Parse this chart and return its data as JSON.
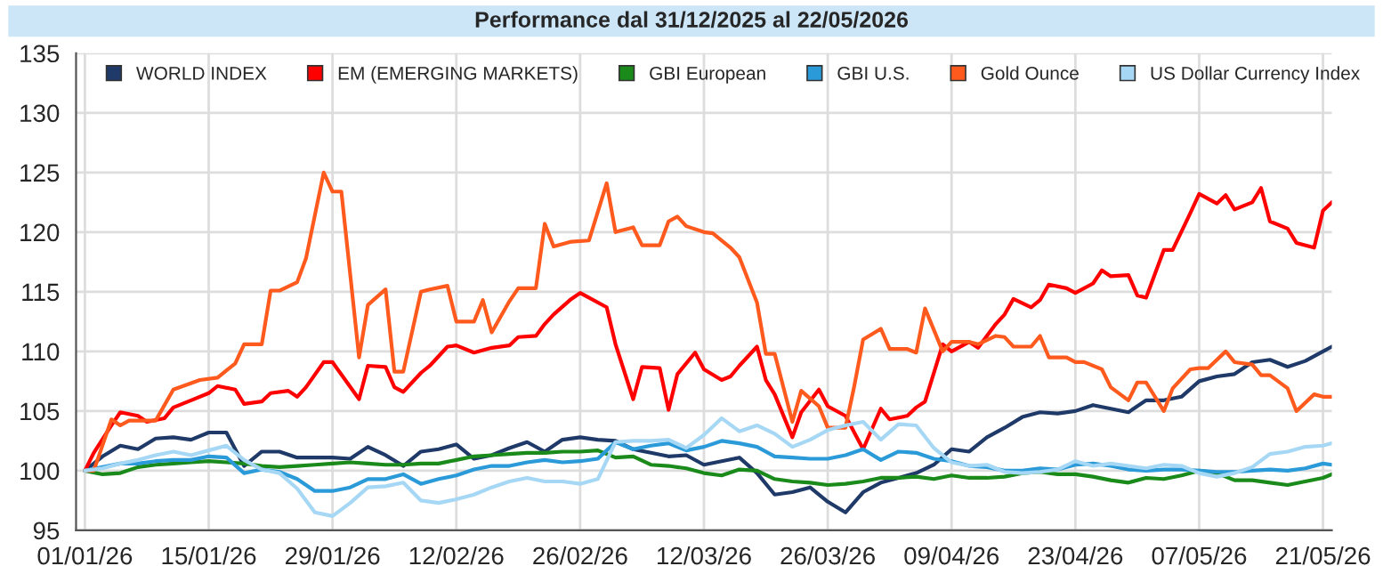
{
  "chart_data": {
    "type": "line",
    "title": "Performance dal 31/12/2025 al 22/05/2026",
    "x": [
      "2026-01-01",
      "2026-01-03",
      "2026-01-05",
      "2026-01-07",
      "2026-01-09",
      "2026-01-11",
      "2026-01-13",
      "2026-01-15",
      "2026-01-17",
      "2026-01-19",
      "2026-01-21",
      "2026-01-23",
      "2026-01-25",
      "2026-01-27",
      "2026-01-29",
      "2026-01-31",
      "2026-02-02",
      "2026-02-04",
      "2026-02-06",
      "2026-02-08",
      "2026-02-10",
      "2026-02-12",
      "2026-02-14",
      "2026-02-16",
      "2026-02-18",
      "2026-02-20",
      "2026-02-22",
      "2026-02-24",
      "2026-02-26",
      "2026-02-28",
      "2026-03-02",
      "2026-03-04",
      "2026-03-06",
      "2026-03-08",
      "2026-03-10",
      "2026-03-12",
      "2026-03-14",
      "2026-03-16",
      "2026-03-18",
      "2026-03-20",
      "2026-03-22",
      "2026-03-24",
      "2026-03-26",
      "2026-03-28",
      "2026-03-30",
      "2026-04-01",
      "2026-04-03",
      "2026-04-05",
      "2026-04-07",
      "2026-04-09",
      "2026-04-11",
      "2026-04-13",
      "2026-04-15",
      "2026-04-17",
      "2026-04-19",
      "2026-04-21",
      "2026-04-23",
      "2026-04-25",
      "2026-04-27",
      "2026-04-29",
      "2026-05-01",
      "2026-05-03",
      "2026-05-05",
      "2026-05-07",
      "2026-05-09",
      "2026-05-11",
      "2026-05-13",
      "2026-05-15",
      "2026-05-17",
      "2026-05-19",
      "2026-05-21",
      "2026-05-22"
    ],
    "series": [
      {
        "name": "WORLD INDEX",
        "color": "#1f3a68",
        "values": [
          100,
          101.2,
          102.1,
          101.8,
          102.7,
          102.8,
          102.6,
          103.2,
          103.2,
          100.4,
          101.6,
          101.6,
          101.1,
          101.1,
          101.1,
          101,
          102,
          101.3,
          100.4,
          101.6,
          101.8,
          102.2,
          101,
          101.3,
          101.9,
          102.4,
          101.6,
          102.6,
          102.8,
          102.6,
          102.5,
          101.8,
          101.5,
          101.2,
          101.3,
          100.5,
          100.8,
          101.1,
          99.8,
          98,
          98.2,
          98.6,
          97.4,
          96.5,
          98.2,
          99,
          99.4,
          99.8,
          100.5,
          101.8,
          101.6,
          102.8,
          103.6,
          104.5,
          104.9,
          104.8,
          105,
          105.5,
          105.2,
          104.9,
          105.9,
          105.9,
          106.2,
          107.5,
          107.9,
          108.1,
          109.1,
          109.3,
          108.7,
          109.2,
          110,
          110.4
        ]
      },
      {
        "name": "EM (EMERGING MARKETS)",
        "color": "#ff0000",
        "x": [
          "2026-01-01",
          "2026-01-02",
          "2026-01-04",
          "2026-01-05",
          "2026-01-07",
          "2026-01-08",
          "2026-01-10",
          "2026-01-11",
          "2026-01-13",
          "2026-01-15",
          "2026-01-16",
          "2026-01-18",
          "2026-01-19",
          "2026-01-21",
          "2026-01-22",
          "2026-01-24",
          "2026-01-25",
          "2026-01-26",
          "2026-01-28",
          "2026-01-29",
          "2026-02-01",
          "2026-02-02",
          "2026-02-04",
          "2026-02-05",
          "2026-02-06",
          "2026-02-08",
          "2026-02-09",
          "2026-02-11",
          "2026-02-12",
          "2026-02-14",
          "2026-02-16",
          "2026-02-18",
          "2026-02-19",
          "2026-02-21",
          "2026-02-22",
          "2026-02-23",
          "2026-02-25",
          "2026-02-26",
          "2026-03-01",
          "2026-03-02",
          "2026-03-04",
          "2026-03-05",
          "2026-03-07",
          "2026-03-08",
          "2026-03-09",
          "2026-03-11",
          "2026-03-12",
          "2026-03-14",
          "2026-03-15",
          "2026-03-16",
          "2026-03-18",
          "2026-03-19",
          "2026-03-20",
          "2026-03-22",
          "2026-03-23",
          "2026-03-25",
          "2026-03-26",
          "2026-03-28",
          "2026-03-30",
          "2026-04-01",
          "2026-04-02",
          "2026-04-04",
          "2026-04-05",
          "2026-04-06",
          "2026-04-08",
          "2026-04-09",
          "2026-04-11",
          "2026-04-12",
          "2026-04-14",
          "2026-04-15",
          "2026-04-16",
          "2026-04-18",
          "2026-04-19",
          "2026-04-20",
          "2026-04-22",
          "2026-04-23",
          "2026-04-25",
          "2026-04-26",
          "2026-04-27",
          "2026-04-29",
          "2026-04-30",
          "2026-05-01",
          "2026-05-03",
          "2026-05-04",
          "2026-05-06",
          "2026-05-07",
          "2026-05-09",
          "2026-05-10",
          "2026-05-11",
          "2026-05-13",
          "2026-05-14",
          "2026-05-15",
          "2026-05-17",
          "2026-05-18",
          "2026-05-20",
          "2026-05-21",
          "2026-05-22"
        ],
        "values": [
          100,
          101.5,
          103.8,
          104.9,
          104.6,
          104.1,
          104.4,
          105.3,
          105.9,
          106.5,
          107.1,
          106.8,
          105.6,
          105.8,
          106.5,
          106.7,
          106.2,
          107,
          109.1,
          109.1,
          106,
          108.8,
          108.7,
          107,
          106.6,
          108.2,
          108.8,
          110.4,
          110.5,
          109.9,
          110.3,
          110.5,
          111.2,
          111.3,
          112.3,
          113.1,
          114.4,
          114.9,
          113.7,
          110.6,
          106,
          108.7,
          108.6,
          105.1,
          108.1,
          109.9,
          108.5,
          107.6,
          107.9,
          108.8,
          110.4,
          107.6,
          106.4,
          102.8,
          104.9,
          106.8,
          105.4,
          104.6,
          101.8,
          105.2,
          104.3,
          104.6,
          105.3,
          105.8,
          110.6,
          110,
          110.8,
          110.3,
          112.3,
          113.1,
          114.4,
          113.7,
          114.3,
          115.6,
          115.3,
          114.9,
          115.7,
          116.8,
          116.3,
          116.4,
          114.7,
          114.5,
          118.5,
          118.5,
          121.6,
          123.2,
          122.4,
          123.1,
          121.9,
          122.5,
          123.7,
          120.9,
          120.3,
          119.1,
          118.7,
          121.8,
          122.5
        ]
      },
      {
        "name": "GBI European",
        "color": "#1a8a1a",
        "values": [
          100,
          99.7,
          99.8,
          100.3,
          100.5,
          100.6,
          100.7,
          100.8,
          100.7,
          100.6,
          100.4,
          100.3,
          100.4,
          100.5,
          100.6,
          100.7,
          100.6,
          100.5,
          100.5,
          100.6,
          100.6,
          100.9,
          101.2,
          101.3,
          101.4,
          101.5,
          101.5,
          101.6,
          101.6,
          101.7,
          101.1,
          101.2,
          100.5,
          100.4,
          100.2,
          99.8,
          99.6,
          100.1,
          100,
          99.3,
          99.1,
          99,
          98.8,
          98.9,
          99.1,
          99.4,
          99.4,
          99.5,
          99.3,
          99.6,
          99.4,
          99.4,
          99.5,
          99.8,
          99.9,
          99.7,
          99.7,
          99.5,
          99.2,
          99,
          99.4,
          99.3,
          99.6,
          100,
          99.8,
          99.2,
          99.2,
          99,
          98.8,
          99.1,
          99.4,
          99.7
        ]
      },
      {
        "name": "GBI U.S.",
        "color": "#2a9ad8",
        "values": [
          100,
          100.3,
          100.6,
          100.6,
          100.8,
          100.9,
          100.9,
          101.2,
          101.1,
          99.8,
          100.1,
          99.9,
          99.3,
          98.3,
          98.3,
          98.6,
          99.3,
          99.3,
          99.7,
          98.9,
          99.3,
          99.6,
          100.1,
          100.4,
          100.4,
          100.7,
          100.9,
          100.7,
          100.8,
          101,
          102.4,
          101.8,
          102.1,
          102.3,
          101.7,
          102,
          102.5,
          102.3,
          102,
          101.2,
          101.1,
          101,
          101,
          101.3,
          101.8,
          100.9,
          101.6,
          101.5,
          101,
          100.8,
          100.4,
          100.3,
          100,
          100,
          100.2,
          100.1,
          100.5,
          100.6,
          100.4,
          100.1,
          100,
          100.1,
          100.1,
          100,
          99.9,
          99.9,
          100,
          100.1,
          100,
          100.2,
          100.6,
          100.5
        ]
      },
      {
        "name": "Gold Ounce",
        "color": "#ff5a1e",
        "x": [
          "2026-01-01",
          "2026-01-02",
          "2026-01-04",
          "2026-01-05",
          "2026-01-06",
          "2026-01-09",
          "2026-01-11",
          "2026-01-14",
          "2026-01-16",
          "2026-01-18",
          "2026-01-19",
          "2026-01-21",
          "2026-01-22",
          "2026-01-23",
          "2026-01-25",
          "2026-01-26",
          "2026-01-28",
          "2026-01-29",
          "2026-01-30",
          "2026-02-01",
          "2026-02-02",
          "2026-02-04",
          "2026-02-05",
          "2026-02-06",
          "2026-02-08",
          "2026-02-09",
          "2026-02-11",
          "2026-02-12",
          "2026-02-14",
          "2026-02-15",
          "2026-02-16",
          "2026-02-18",
          "2026-02-19",
          "2026-02-21",
          "2026-02-22",
          "2026-02-23",
          "2026-02-25",
          "2026-02-27",
          "2026-03-01",
          "2026-03-02",
          "2026-03-04",
          "2026-03-05",
          "2026-03-07",
          "2026-03-08",
          "2026-03-09",
          "2026-03-10",
          "2026-03-12",
          "2026-03-13",
          "2026-03-15",
          "2026-03-16",
          "2026-03-18",
          "2026-03-19",
          "2026-03-20",
          "2026-03-22",
          "2026-03-23",
          "2026-03-25",
          "2026-03-26",
          "2026-03-28",
          "2026-03-29",
          "2026-03-30",
          "2026-04-01",
          "2026-04-02",
          "2026-04-04",
          "2026-04-05",
          "2026-04-06",
          "2026-04-08",
          "2026-04-09",
          "2026-04-11",
          "2026-04-12",
          "2026-04-14",
          "2026-04-15",
          "2026-04-16",
          "2026-04-18",
          "2026-04-19",
          "2026-04-20",
          "2026-04-22",
          "2026-04-23",
          "2026-04-24",
          "2026-04-26",
          "2026-04-27",
          "2026-04-29",
          "2026-04-30",
          "2026-05-01",
          "2026-05-03",
          "2026-05-04",
          "2026-05-06",
          "2026-05-07",
          "2026-05-08",
          "2026-05-10",
          "2026-05-11",
          "2026-05-13",
          "2026-05-14",
          "2026-05-15",
          "2026-05-17",
          "2026-05-18",
          "2026-05-20",
          "2026-05-21",
          "2026-05-22"
        ],
        "values": [
          100,
          100,
          104.3,
          103.8,
          104.2,
          104.2,
          106.8,
          107.6,
          107.8,
          109,
          110.6,
          110.6,
          115.1,
          115.1,
          115.8,
          117.8,
          125,
          123.4,
          123.4,
          109.5,
          113.9,
          115.2,
          108.3,
          108.3,
          115,
          115.2,
          115.5,
          112.5,
          112.5,
          114.3,
          111.6,
          114.2,
          115.3,
          115.3,
          120.7,
          118.8,
          119.2,
          119.3,
          124.1,
          120,
          120.4,
          118.9,
          118.9,
          120.9,
          121.3,
          120.5,
          120,
          119.9,
          118.7,
          117.9,
          114.1,
          109.8,
          109.8,
          104.1,
          106.7,
          105.4,
          103.6,
          103.6,
          107.1,
          111,
          111.9,
          110.2,
          110.2,
          109.9,
          113.6,
          110,
          110.8,
          110.8,
          110.6,
          111.3,
          111.2,
          110.4,
          110.4,
          111.3,
          109.5,
          109.5,
          109.1,
          109.1,
          108.5,
          107,
          105.9,
          107.4,
          107.4,
          105,
          106.9,
          108.5,
          108.6,
          108.6,
          110,
          109.1,
          108.9,
          108,
          108,
          106.9,
          105,
          106.4,
          106.2,
          106.2
        ]
      },
      {
        "name": "US Dollar Currency Index",
        "color": "#a6d8f5",
        "values": [
          100,
          100.2,
          100.6,
          100.9,
          101.3,
          101.6,
          101.3,
          101.7,
          102.1,
          100.9,
          100.1,
          99.8,
          98.5,
          96.5,
          96.2,
          97.3,
          98.6,
          98.7,
          99,
          97.5,
          97.3,
          97.6,
          98,
          98.6,
          99.1,
          99.4,
          99.1,
          99.1,
          98.9,
          99.3,
          102.4,
          102.5,
          102.5,
          102.6,
          101.9,
          103,
          104.4,
          103.3,
          103.8,
          103.1,
          102,
          102.6,
          103.4,
          103.8,
          104.1,
          102.6,
          103.9,
          103.8,
          101.9,
          100.7,
          100.4,
          100.5,
          99.9,
          99.8,
          99.9,
          100.1,
          100.8,
          100.4,
          100.6,
          100.4,
          100.2,
          100.5,
          100.4,
          99.8,
          99.5,
          99.8,
          100.3,
          101.4,
          101.6,
          102,
          102.1,
          102.3
        ]
      }
    ],
    "xlim": [
      "2025-12-31",
      "2026-05-22"
    ],
    "xticks": [
      {
        "value": "2026-01-01",
        "label": "01/01/26"
      },
      {
        "value": "2026-01-15",
        "label": "15/01/26"
      },
      {
        "value": "2026-01-29",
        "label": "29/01/26"
      },
      {
        "value": "2026-02-12",
        "label": "12/02/26"
      },
      {
        "value": "2026-02-26",
        "label": "26/02/26"
      },
      {
        "value": "2026-03-12",
        "label": "12/03/26"
      },
      {
        "value": "2026-03-26",
        "label": "26/03/26"
      },
      {
        "value": "2026-04-09",
        "label": "09/04/26"
      },
      {
        "value": "2026-04-23",
        "label": "23/04/26"
      },
      {
        "value": "2026-05-07",
        "label": "07/05/26"
      },
      {
        "value": "2026-05-21",
        "label": "21/05/26"
      }
    ],
    "ylim": [
      95,
      135
    ],
    "yticks": [
      95,
      100,
      105,
      110,
      115,
      120,
      125,
      130,
      135
    ],
    "grid": true,
    "legend": "top",
    "marker": "none",
    "line_style": "solid"
  }
}
